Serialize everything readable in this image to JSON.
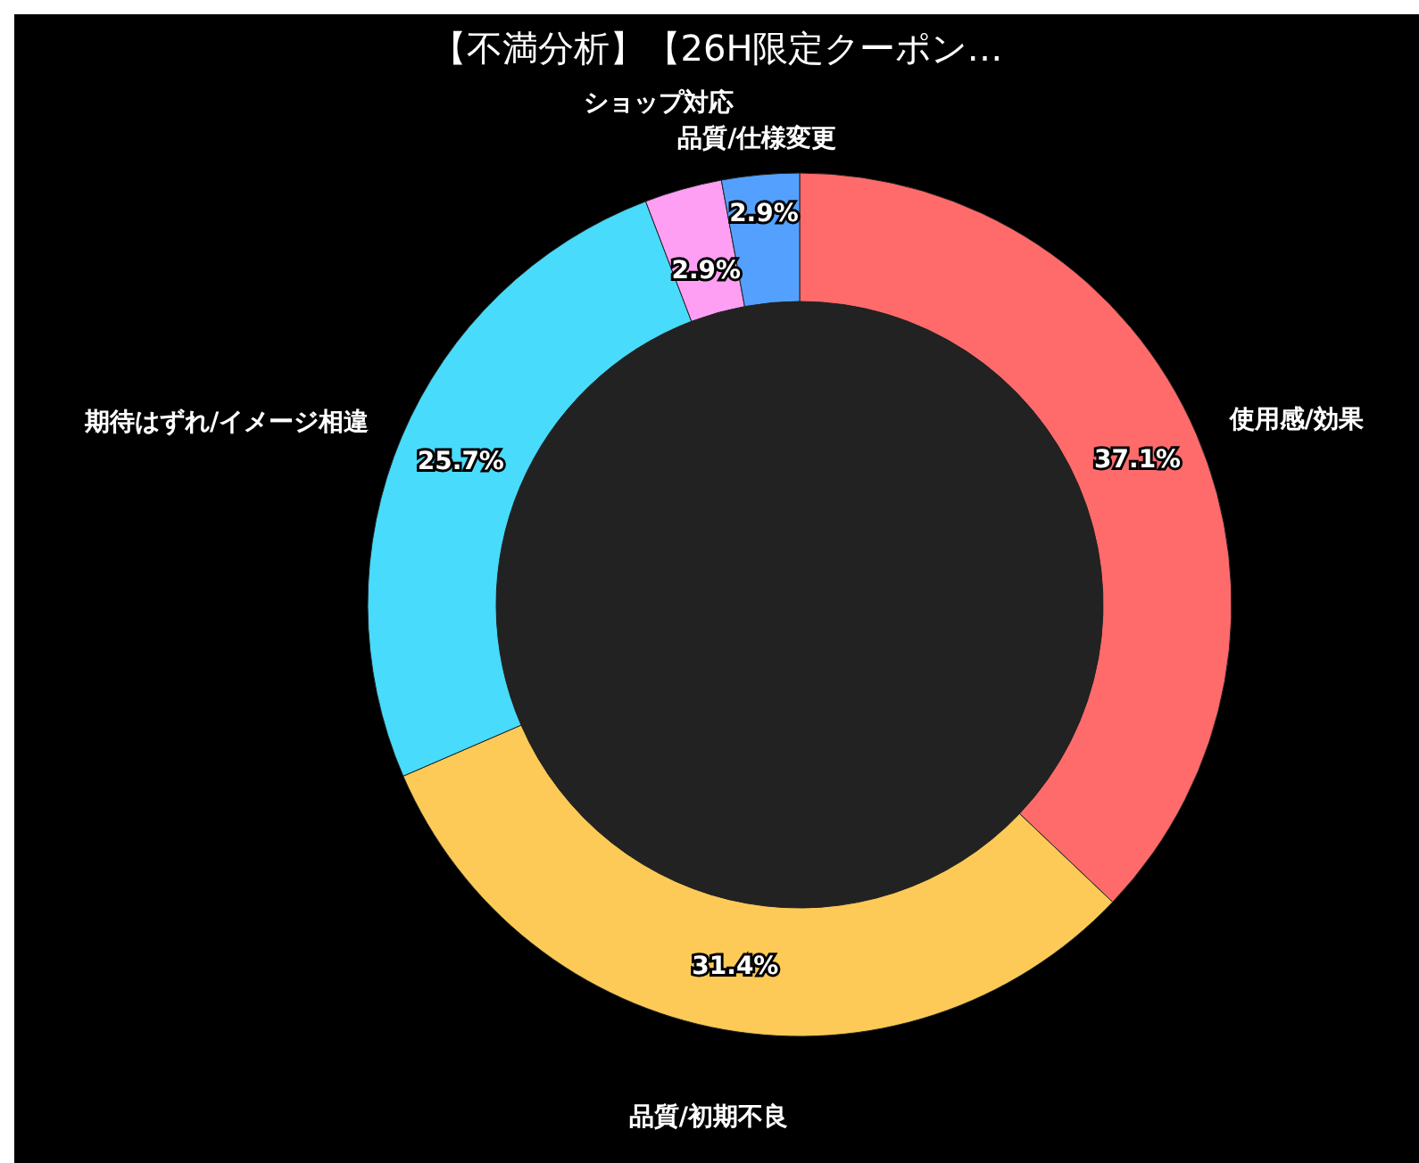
{
  "chart_data": {
    "type": "donut",
    "title": "【不満分析】【26H限定クーポン…",
    "categories": [
      "使用感/効果",
      "品質/初期不良",
      "期待はずれ/イメージ相違",
      "ショップ対応",
      "品質/仕様変更"
    ],
    "values": [
      37.1,
      31.4,
      25.7,
      2.9,
      2.9
    ],
    "colors": [
      "#ff6b6b",
      "#feca57",
      "#48dbfb",
      "#ff9ff3",
      "#54a0ff"
    ],
    "value_labels": [
      "37.1%",
      "31.4%",
      "25.7%",
      "2.9%",
      "2.9%"
    ]
  }
}
